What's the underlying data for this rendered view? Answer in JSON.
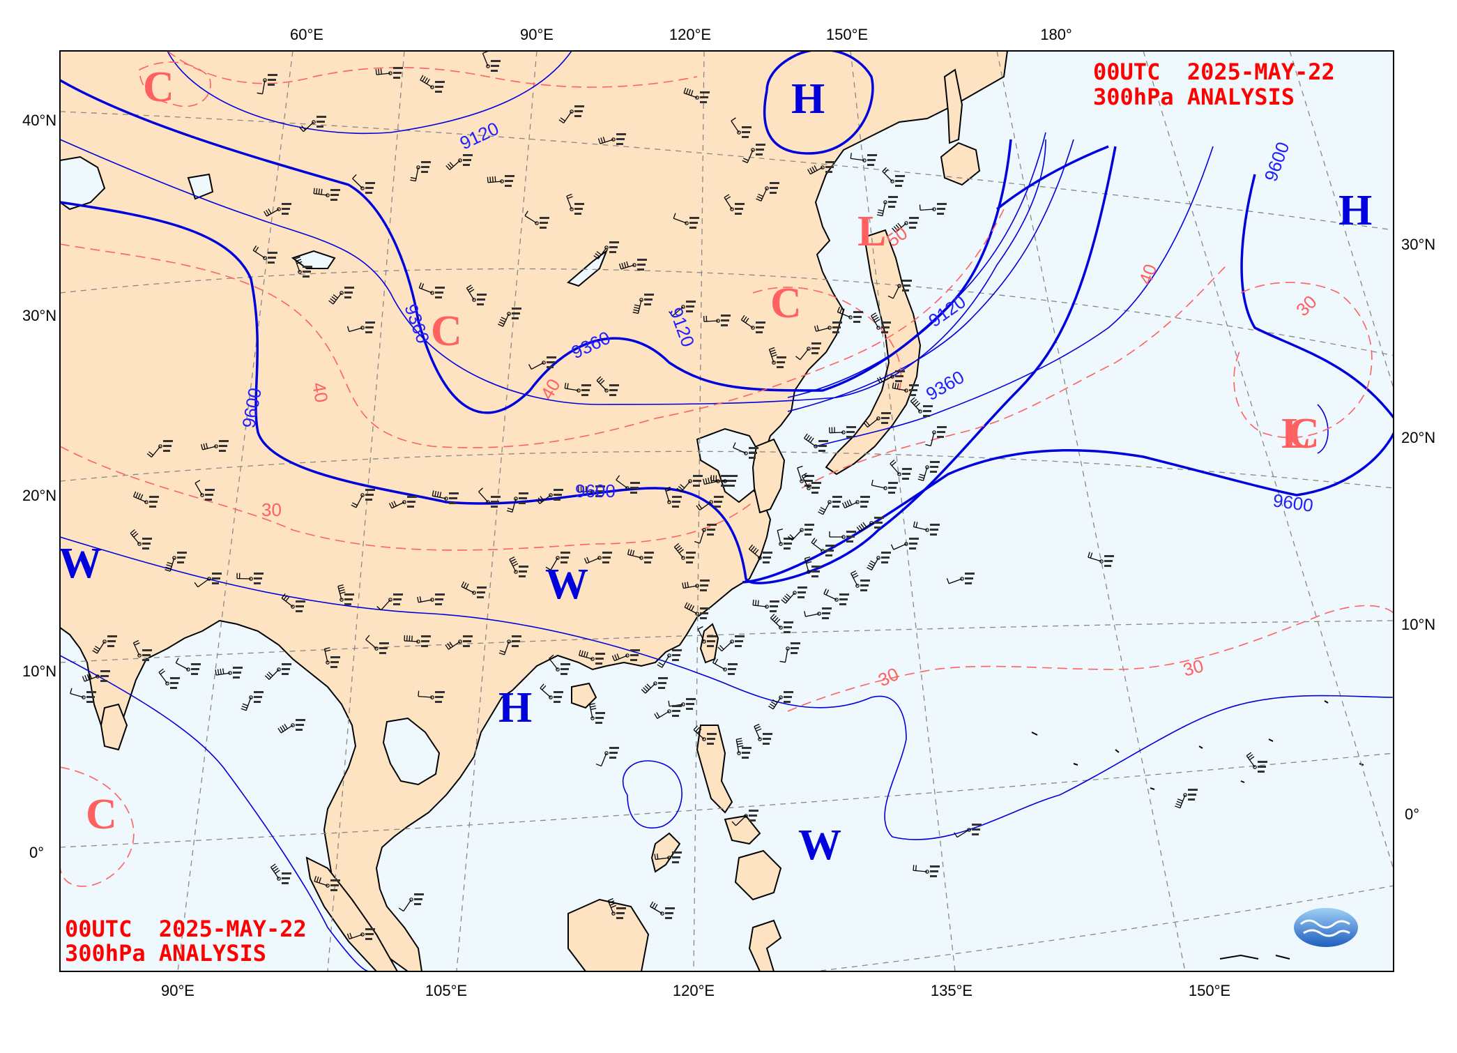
{
  "titles": {
    "top_line1": "00UTC  2025-MAY-22",
    "top_line2": "300hPa ANALYSIS",
    "bottom_line1": "00UTC  2025-MAY-22",
    "bottom_line2": "300hPa ANALYSIS"
  },
  "top_lon_labels": [
    "60°E",
    "90°E",
    "120°E",
    "150°E",
    "180°"
  ],
  "bottom_lon_labels": [
    "90°E",
    "105°E",
    "120°E",
    "135°E",
    "150°E"
  ],
  "left_lat_labels": [
    "40°N",
    "30°N",
    "20°N",
    "10°N",
    "0°"
  ],
  "right_lat_labels": [
    "30°N",
    "20°N",
    "10°N",
    "0°"
  ],
  "height_contour_labels": [
    "9120",
    "9360",
    "9600",
    "9360",
    "9120",
    "9120",
    "9360",
    "9600",
    "9600",
    "9600"
  ],
  "temp_contour_labels": [
    "40",
    "30",
    "40",
    "50",
    "40",
    "30",
    "30",
    "30"
  ],
  "systems": [
    {
      "label": "H",
      "color": "#0000dd"
    },
    {
      "label": "H",
      "color": "#0000dd"
    },
    {
      "label": "H",
      "color": "#0000dd"
    },
    {
      "label": "L",
      "color": "#ff6060"
    },
    {
      "label": "L",
      "color": "#ff6060"
    },
    {
      "label": "C",
      "color": "#ff6060"
    },
    {
      "label": "C",
      "color": "#ff6060"
    },
    {
      "label": "C",
      "color": "#ff6060"
    },
    {
      "label": "C",
      "color": "#ff6060"
    },
    {
      "label": "C",
      "color": "#ff6060"
    },
    {
      "label": "W",
      "color": "#0000dd"
    },
    {
      "label": "W",
      "color": "#0000dd"
    },
    {
      "label": "W",
      "color": "#0000dd"
    }
  ],
  "colors": {
    "land": "#fde3c2",
    "ocean": "#eff8fd",
    "height_contour": "#0000dd",
    "temp_contour": "#ff6060",
    "grid": "#888888",
    "title": "#ff0000"
  },
  "logo": {
    "name": "agency-logo"
  }
}
